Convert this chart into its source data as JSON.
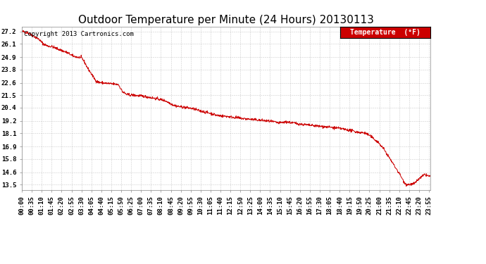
{
  "title": "Outdoor Temperature per Minute (24 Hours) 20130113",
  "copyright_text": "Copyright 2013 Cartronics.com",
  "legend_label": "Temperature  (°F)",
  "line_color": "#cc0000",
  "background_color": "#ffffff",
  "grid_color": "#aaaaaa",
  "yticks": [
    13.5,
    14.6,
    15.8,
    16.9,
    18.1,
    19.2,
    20.4,
    21.5,
    22.6,
    23.8,
    24.9,
    26.1,
    27.2
  ],
  "ylim": [
    13.0,
    27.65
  ],
  "xlim_minutes": [
    0,
    1439
  ],
  "xtick_labels": [
    "00:00",
    "00:35",
    "01:10",
    "01:45",
    "02:20",
    "02:55",
    "03:30",
    "04:05",
    "04:40",
    "05:15",
    "05:50",
    "06:25",
    "07:00",
    "07:35",
    "08:10",
    "08:45",
    "09:20",
    "09:55",
    "10:30",
    "11:05",
    "11:40",
    "12:15",
    "12:50",
    "13:25",
    "14:00",
    "14:35",
    "15:10",
    "15:45",
    "16:20",
    "16:55",
    "17:30",
    "18:05",
    "18:40",
    "19:15",
    "19:50",
    "20:25",
    "21:00",
    "21:35",
    "22:10",
    "22:45",
    "23:20",
    "23:55"
  ],
  "xtick_minutes": [
    0,
    35,
    70,
    105,
    140,
    175,
    210,
    245,
    280,
    315,
    350,
    385,
    420,
    455,
    490,
    525,
    560,
    595,
    630,
    665,
    700,
    735,
    770,
    805,
    840,
    875,
    910,
    945,
    980,
    1015,
    1050,
    1085,
    1120,
    1155,
    1190,
    1225,
    1260,
    1295,
    1330,
    1365,
    1400,
    1435
  ],
  "legend_bg": "#cc0000",
  "legend_text_color": "#ffffff",
  "title_fontsize": 11,
  "tick_fontsize": 6.5,
  "copyright_fontsize": 6.5
}
